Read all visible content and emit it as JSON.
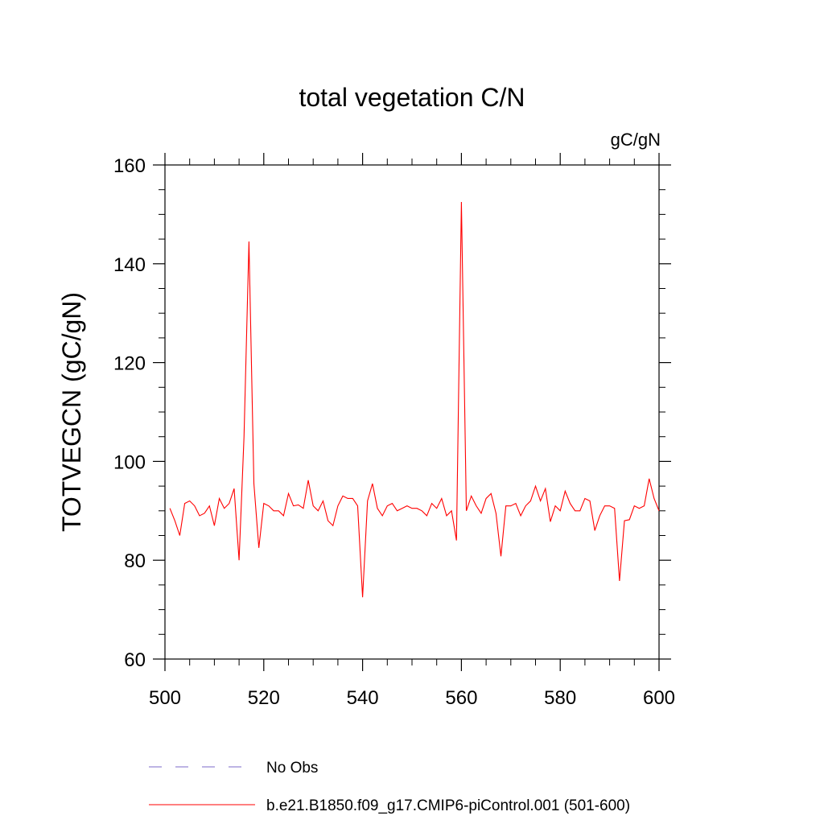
{
  "chart_data": {
    "type": "line",
    "title": "total vegetation C/N",
    "units": "gC/gN",
    "ylabel": "TOTVEGCN  (gC/gN)",
    "xlabel": "",
    "xlim": [
      500,
      600
    ],
    "ylim": [
      60,
      160
    ],
    "x_ticks": [
      500,
      520,
      540,
      560,
      580,
      600
    ],
    "y_ticks": [
      60,
      80,
      100,
      120,
      140,
      160
    ],
    "grid": false,
    "legend_position": "bottom",
    "series": [
      {
        "name": "No Obs",
        "color": "#7b68c8",
        "style": "dashed",
        "x": [],
        "values": []
      },
      {
        "name": "b.e21.B1850.f09_g17.CMIP6-piControl.001 (501-600)",
        "color": "#ff0000",
        "style": "solid",
        "x": [
          501,
          502,
          503,
          504,
          505,
          506,
          507,
          508,
          509,
          510,
          511,
          512,
          513,
          514,
          515,
          516,
          517,
          518,
          519,
          520,
          521,
          522,
          523,
          524,
          525,
          526,
          527,
          528,
          529,
          530,
          531,
          532,
          533,
          534,
          535,
          536,
          537,
          538,
          539,
          540,
          541,
          542,
          543,
          544,
          545,
          546,
          547,
          548,
          549,
          550,
          551,
          552,
          553,
          554,
          555,
          556,
          557,
          558,
          559,
          560,
          561,
          562,
          563,
          564,
          565,
          566,
          567,
          568,
          569,
          570,
          571,
          572,
          573,
          574,
          575,
          576,
          577,
          578,
          579,
          580,
          581,
          582,
          583,
          584,
          585,
          586,
          587,
          588,
          589,
          590,
          591,
          592,
          593,
          594,
          595,
          596,
          597,
          598,
          599,
          600
        ],
        "values": [
          90.5,
          88.0,
          85.0,
          91.5,
          92.0,
          91.0,
          89.0,
          89.5,
          91.0,
          87.0,
          92.5,
          90.5,
          91.5,
          94.5,
          80.0,
          105.0,
          144.5,
          95.5,
          82.5,
          91.5,
          91.0,
          90.0,
          90.0,
          89.0,
          93.5,
          91.0,
          91.2,
          90.5,
          96.2,
          91.0,
          90.0,
          92.0,
          88.0,
          87.0,
          91.0,
          93.0,
          92.5,
          92.5,
          91.0,
          72.5,
          92.0,
          95.5,
          90.5,
          89.0,
          91.0,
          91.5,
          90.0,
          90.5,
          91.0,
          90.5,
          90.5,
          90.0,
          89.0,
          91.5,
          90.5,
          92.5,
          89.0,
          90.0,
          84.0,
          152.5,
          90.0,
          93.0,
          91.0,
          89.5,
          92.5,
          93.5,
          89.5,
          80.8,
          91.0,
          91.0,
          91.5,
          89.0,
          91.0,
          92.0,
          95.0,
          92.0,
          94.5,
          87.8,
          91.0,
          90.0,
          94.0,
          91.5,
          90.0,
          90.0,
          92.5,
          92.0,
          86.0,
          89.0,
          91.0,
          91.0,
          90.5,
          75.8,
          88.0,
          88.2,
          91.0,
          90.5,
          91.0,
          96.5,
          92.5,
          90.0
        ]
      }
    ]
  }
}
